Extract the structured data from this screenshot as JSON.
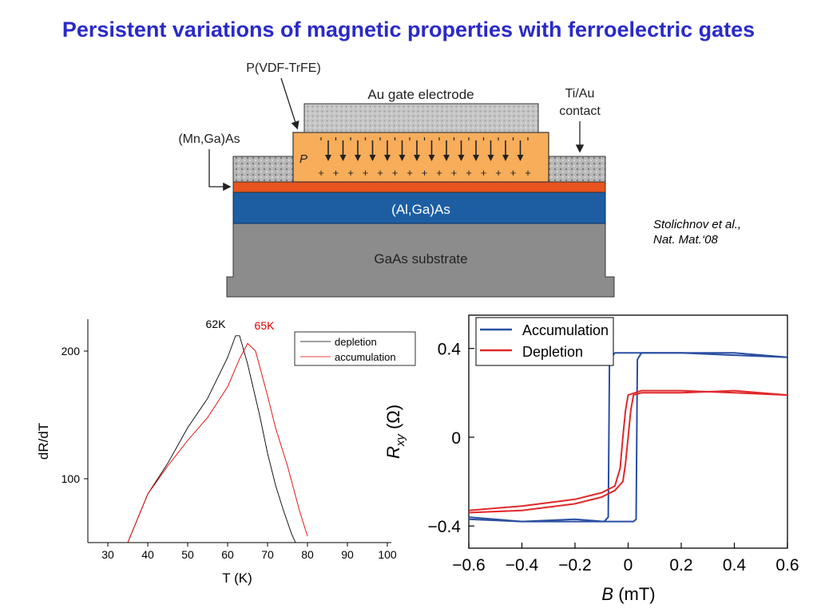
{
  "title": "Persistent variations of magnetic properties with ferroelectric gates",
  "citation": {
    "line1": "Stolichnov et al.,",
    "line2": "Nat. Mat.‘08"
  },
  "diagram": {
    "label_pvdf": "P(VDF-TrFE)",
    "label_gate": "Au gate electrode",
    "label_contact_1": "Ti/Au",
    "label_contact_2": "contact",
    "label_mnga": "(Mn,Ga)As",
    "label_polarization": "P",
    "label_alga": "(Al,Ga)As",
    "label_substrate": "GaAs substrate",
    "colors": {
      "pvdf": "#f7ad5a",
      "mnga": "#e8541e",
      "alga": "#1d5ea3",
      "substrate": "#8c8c8c",
      "gate": "#c9c9c9"
    }
  },
  "chart_data": [
    {
      "type": "line",
      "xlabel": "T (K)",
      "ylabel": "dR/dT",
      "xlim": [
        25,
        100
      ],
      "ylim": [
        50,
        225
      ],
      "xticks": [
        30,
        40,
        50,
        60,
        70,
        80,
        90,
        100
      ],
      "yticks": [
        100,
        200
      ],
      "legend_position": "top-right",
      "annotations": [
        {
          "text": "62K",
          "color": "#000000"
        },
        {
          "text": "65K",
          "color": "#e00000"
        }
      ],
      "series": [
        {
          "name": "depletion",
          "color": "#000000",
          "x": [
            35,
            40,
            45,
            50,
            55,
            60,
            62,
            63,
            65,
            68,
            70,
            72,
            74,
            76,
            77
          ],
          "y": [
            50,
            88,
            112,
            140,
            163,
            195,
            212,
            212,
            190,
            150,
            120,
            95,
            75,
            57,
            50
          ]
        },
        {
          "name": "accumulation",
          "color": "#e00000",
          "x": [
            35,
            40,
            45,
            50,
            55,
            60,
            63,
            65,
            67,
            70,
            72,
            75,
            78,
            80
          ],
          "y": [
            50,
            88,
            110,
            130,
            148,
            172,
            194,
            206,
            200,
            165,
            140,
            110,
            75,
            55
          ]
        }
      ]
    },
    {
      "type": "line",
      "xlabel": "B (mT)",
      "ylabel": "Rxy (Ω)",
      "xlim": [
        -0.6,
        0.6
      ],
      "ylim": [
        -0.5,
        0.55
      ],
      "xticks": [
        "−0.6",
        "−0.4",
        "−0.2",
        "0",
        "0.2",
        "0.4",
        "0.6"
      ],
      "yticks": [
        "−0.4",
        "0",
        "0.4"
      ],
      "legend_position": "top-left",
      "series": [
        {
          "name": "Accumulation",
          "color": "#2a4fa0",
          "loops": [
            {
              "x": [
                -0.6,
                -0.4,
                -0.2,
                -0.05,
                0.0,
                0.01,
                0.02,
                0.03,
                0.035,
                0.05,
                0.2,
                0.4,
                0.6
              ],
              "y": [
                -0.37,
                -0.38,
                -0.38,
                -0.38,
                -0.38,
                -0.38,
                -0.38,
                -0.37,
                0.35,
                0.38,
                0.38,
                0.38,
                0.36
              ]
            },
            {
              "x": [
                0.6,
                0.4,
                0.2,
                0.0,
                -0.05,
                -0.07,
                -0.075,
                -0.09,
                -0.2,
                -0.4,
                -0.6
              ],
              "y": [
                0.36,
                0.37,
                0.38,
                0.38,
                0.38,
                0.35,
                -0.36,
                -0.38,
                -0.37,
                -0.38,
                -0.36
              ]
            }
          ]
        },
        {
          "name": "Depletion",
          "color": "#e0282a",
          "loops": [
            {
              "x": [
                -0.6,
                -0.4,
                -0.2,
                -0.1,
                -0.05,
                -0.02,
                -0.01,
                0.0,
                0.01,
                0.02,
                0.05,
                0.2,
                0.4,
                0.6
              ],
              "y": [
                -0.34,
                -0.33,
                -0.3,
                -0.27,
                -0.24,
                -0.2,
                -0.12,
                0.0,
                0.12,
                0.19,
                0.2,
                0.2,
                0.21,
                0.19
              ]
            },
            {
              "x": [
                0.6,
                0.4,
                0.2,
                0.05,
                0.0,
                -0.01,
                -0.02,
                -0.03,
                -0.05,
                -0.1,
                -0.2,
                -0.4,
                -0.6
              ],
              "y": [
                0.19,
                0.2,
                0.21,
                0.21,
                0.19,
                0.12,
                0.0,
                -0.14,
                -0.22,
                -0.25,
                -0.28,
                -0.31,
                -0.33
              ]
            }
          ]
        }
      ]
    }
  ]
}
